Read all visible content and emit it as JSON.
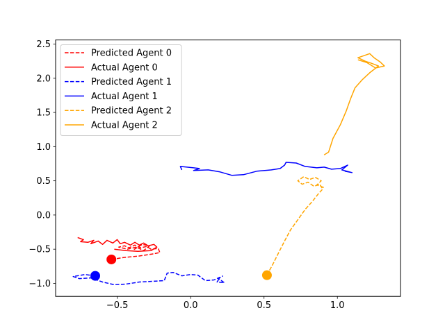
{
  "chart_data": {
    "type": "line",
    "title": "",
    "xlabel": "",
    "ylabel": "",
    "xlim": [
      -0.92,
      1.43
    ],
    "ylim": [
      -1.19,
      2.56
    ],
    "x_ticks": [
      -0.5,
      0.0,
      0.5,
      1.0
    ],
    "x_tick_labels": [
      "−0.5",
      "0.0",
      "0.5",
      "1.0"
    ],
    "y_ticks": [
      -1.0,
      -0.5,
      0.0,
      0.5,
      1.0,
      1.5,
      2.0,
      2.5
    ],
    "y_tick_labels": [
      "−1.0",
      "−0.5",
      "0.0",
      "0.5",
      "1.0",
      "1.5",
      "2.0",
      "2.5"
    ],
    "grid": false,
    "legend_position": "upper-left",
    "series": [
      {
        "name": "Predicted Agent 0",
        "color": "#ff0000",
        "style": "dashed",
        "points": [
          [
            -0.54,
            -0.65
          ],
          [
            -0.45,
            -0.62
          ],
          [
            -0.35,
            -0.6
          ],
          [
            -0.26,
            -0.57
          ],
          [
            -0.21,
            -0.55
          ],
          [
            -0.22,
            -0.49
          ],
          [
            -0.27,
            -0.5
          ],
          [
            -0.3,
            -0.46
          ],
          [
            -0.34,
            -0.48
          ],
          [
            -0.38,
            -0.44
          ],
          [
            -0.42,
            -0.48
          ],
          [
            -0.45,
            -0.45
          ],
          [
            -0.49,
            -0.47
          ],
          [
            -0.43,
            -0.5
          ],
          [
            -0.37,
            -0.47
          ],
          [
            -0.32,
            -0.52
          ],
          [
            -0.28,
            -0.45
          ],
          [
            -0.33,
            -0.43
          ],
          [
            -0.39,
            -0.51
          ]
        ]
      },
      {
        "name": "Actual Agent 0",
        "color": "#ff0000",
        "style": "solid",
        "points": [
          [
            -0.77,
            -0.33
          ],
          [
            -0.73,
            -0.36
          ],
          [
            -0.75,
            -0.39
          ],
          [
            -0.7,
            -0.4
          ],
          [
            -0.66,
            -0.37
          ],
          [
            -0.68,
            -0.42
          ],
          [
            -0.63,
            -0.38
          ],
          [
            -0.6,
            -0.43
          ],
          [
            -0.57,
            -0.37
          ],
          [
            -0.53,
            -0.41
          ],
          [
            -0.5,
            -0.36
          ],
          [
            -0.48,
            -0.42
          ],
          [
            -0.45,
            -0.4
          ],
          [
            -0.41,
            -0.44
          ],
          [
            -0.38,
            -0.4
          ],
          [
            -0.35,
            -0.44
          ],
          [
            -0.32,
            -0.41
          ],
          [
            -0.29,
            -0.45
          ],
          [
            -0.25,
            -0.43
          ],
          [
            -0.23,
            -0.47
          ],
          [
            -0.27,
            -0.52
          ],
          [
            -0.36,
            -0.53
          ],
          [
            -0.44,
            -0.52
          ],
          [
            -0.52,
            -0.5
          ]
        ]
      },
      {
        "name": "Predicted Agent 1",
        "color": "#0000ff",
        "style": "dashed",
        "points": [
          [
            -0.65,
            -0.89
          ],
          [
            -0.72,
            -0.87
          ],
          [
            -0.8,
            -0.9
          ],
          [
            -0.76,
            -0.93
          ],
          [
            -0.68,
            -0.92
          ],
          [
            -0.6,
            -0.98
          ],
          [
            -0.52,
            -1.02
          ],
          [
            -0.44,
            -1.01
          ],
          [
            -0.35,
            -0.98
          ],
          [
            -0.26,
            -0.97
          ],
          [
            -0.18,
            -0.96
          ],
          [
            -0.16,
            -0.85
          ],
          [
            -0.12,
            -0.84
          ],
          [
            -0.06,
            -0.89
          ],
          [
            0.0,
            -0.87
          ],
          [
            0.05,
            -0.88
          ],
          [
            0.1,
            -0.96
          ],
          [
            0.16,
            -0.95
          ],
          [
            0.2,
            -0.91
          ],
          [
            0.18,
            -0.98
          ],
          [
            0.23,
            -0.99
          ],
          [
            0.19,
            -0.93
          ],
          [
            0.22,
            -0.89
          ]
        ]
      },
      {
        "name": "Actual Agent 1",
        "color": "#0000ff",
        "style": "solid",
        "points": [
          [
            -0.06,
            0.66
          ],
          [
            -0.07,
            0.71
          ],
          [
            0.02,
            0.69
          ],
          [
            0.06,
            0.68
          ],
          [
            0.02,
            0.65
          ],
          [
            0.12,
            0.66
          ],
          [
            0.2,
            0.63
          ],
          [
            0.28,
            0.58
          ],
          [
            0.36,
            0.59
          ],
          [
            0.45,
            0.64
          ],
          [
            0.55,
            0.66
          ],
          [
            0.61,
            0.68
          ],
          [
            0.64,
            0.73
          ],
          [
            0.65,
            0.77
          ],
          [
            0.72,
            0.76
          ],
          [
            0.78,
            0.71
          ],
          [
            0.86,
            0.69
          ],
          [
            0.91,
            0.7
          ],
          [
            0.96,
            0.67
          ],
          [
            1.02,
            0.68
          ],
          [
            1.07,
            0.73
          ],
          [
            1.03,
            0.66
          ],
          [
            1.1,
            0.62
          ],
          [
            1.05,
            0.64
          ]
        ]
      },
      {
        "name": "Predicted Agent 2",
        "color": "#ffa500",
        "style": "dashed",
        "points": [
          [
            0.52,
            -0.88
          ],
          [
            0.56,
            -0.72
          ],
          [
            0.6,
            -0.55
          ],
          [
            0.64,
            -0.38
          ],
          [
            0.68,
            -0.22
          ],
          [
            0.73,
            -0.07
          ],
          [
            0.78,
            0.08
          ],
          [
            0.83,
            0.2
          ],
          [
            0.87,
            0.31
          ],
          [
            0.9,
            0.38
          ],
          [
            0.88,
            0.45
          ],
          [
            0.84,
            0.42
          ],
          [
            0.8,
            0.48
          ],
          [
            0.76,
            0.45
          ],
          [
            0.73,
            0.5
          ],
          [
            0.77,
            0.56
          ],
          [
            0.81,
            0.52
          ],
          [
            0.85,
            0.55
          ],
          [
            0.89,
            0.5
          ],
          [
            0.86,
            0.44
          ],
          [
            0.91,
            0.4
          ]
        ]
      },
      {
        "name": "Actual Agent 2",
        "color": "#ffa500",
        "style": "solid",
        "points": [
          [
            0.91,
            0.88
          ],
          [
            0.94,
            0.92
          ],
          [
            0.97,
            1.12
          ],
          [
            1.02,
            1.32
          ],
          [
            1.06,
            1.52
          ],
          [
            1.09,
            1.7
          ],
          [
            1.12,
            1.86
          ],
          [
            1.17,
            1.98
          ],
          [
            1.22,
            2.08
          ],
          [
            1.25,
            2.13
          ],
          [
            1.28,
            2.18
          ],
          [
            1.23,
            2.22
          ],
          [
            1.19,
            2.25
          ],
          [
            1.14,
            2.3
          ],
          [
            1.18,
            2.33
          ],
          [
            1.22,
            2.36
          ],
          [
            1.25,
            2.3
          ],
          [
            1.29,
            2.24
          ],
          [
            1.32,
            2.18
          ],
          [
            1.26,
            2.15
          ],
          [
            1.2,
            2.23
          ],
          [
            1.14,
            2.27
          ]
        ]
      }
    ],
    "markers": [
      {
        "x": -0.54,
        "y": -0.65,
        "color": "#ff0000"
      },
      {
        "x": -0.65,
        "y": -0.89,
        "color": "#0000ff"
      },
      {
        "x": 0.52,
        "y": -0.88,
        "color": "#ffa500"
      }
    ]
  }
}
